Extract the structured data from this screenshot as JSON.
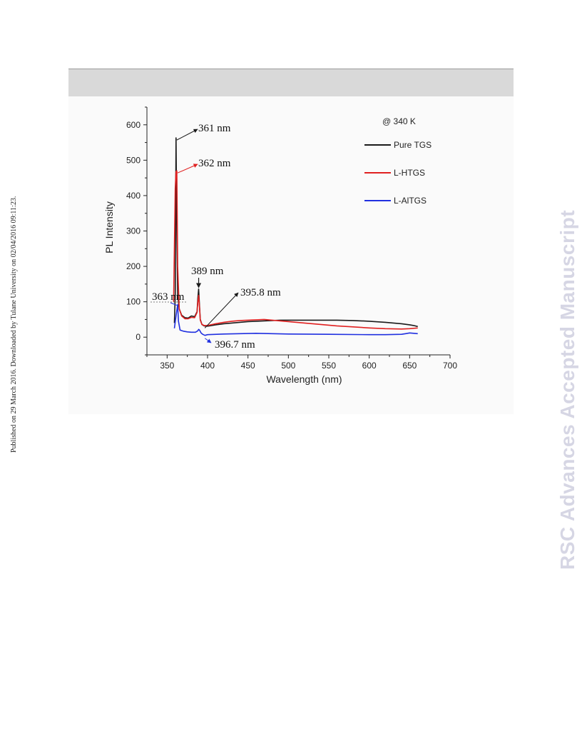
{
  "side_note": "Published on 29 March 2016. Downloaded by Tulane University on 02/04/2016 09:11:23.",
  "watermark": "RSC Advances Accepted Manuscript",
  "chart_data": {
    "type": "line",
    "title": "",
    "xlabel": "Wavelength (nm)",
    "ylabel": "PL Intensity",
    "xlim": [
      325,
      700
    ],
    "ylim": [
      -50,
      650
    ],
    "xticks": [
      350,
      400,
      450,
      500,
      550,
      600,
      650,
      700
    ],
    "yticks": [
      0,
      100,
      200,
      300,
      400,
      500,
      600
    ],
    "grid": false,
    "legend_title": "@ 340 K",
    "legend_position": "top-right",
    "series": [
      {
        "name": "Pure TGS",
        "color": "#1a1a1a",
        "x": [
          359,
          360,
          361,
          362,
          363,
          365,
          368,
          372,
          376,
          380,
          384,
          387,
          388,
          389,
          390,
          391,
          393,
          395.8,
          400,
          410,
          420,
          430,
          440,
          450,
          460,
          470,
          480,
          490,
          500,
          520,
          540,
          560,
          580,
          600,
          620,
          640,
          650,
          655,
          660
        ],
        "y": [
          40,
          120,
          563,
          300,
          120,
          80,
          62,
          55,
          54,
          60,
          58,
          72,
          110,
          136,
          90,
          50,
          36,
          32,
          31,
          35,
          38,
          40,
          42,
          44,
          45,
          46,
          47,
          48,
          48,
          48,
          48,
          48,
          47,
          45,
          42,
          38,
          35,
          33,
          30
        ]
      },
      {
        "name": "L-HTGS",
        "color": "#e02020",
        "x": [
          358,
          359,
          360,
          361,
          362,
          363,
          365,
          368,
          372,
          376,
          380,
          384,
          387,
          388,
          389,
          390,
          391,
          393,
          395.8,
          400,
          410,
          420,
          430,
          440,
          450,
          460,
          470,
          480,
          490,
          500,
          520,
          540,
          560,
          580,
          600,
          620,
          640,
          650,
          655,
          660
        ],
        "y": [
          100,
          250,
          420,
          468,
          470,
          200,
          80,
          60,
          52,
          52,
          56,
          55,
          70,
          100,
          118,
          85,
          48,
          36,
          33,
          33,
          38,
          42,
          45,
          47,
          48,
          49,
          50,
          48,
          46,
          44,
          40,
          36,
          32,
          29,
          26,
          24,
          23,
          24,
          25,
          26
        ]
      },
      {
        "name": "L-AlTGS",
        "color": "#2030e0",
        "x": [
          359,
          361,
          363,
          364,
          366,
          370,
          375,
          380,
          385,
          388,
          389,
          390,
          392,
          394,
          396.7,
          400,
          420,
          440,
          460,
          480,
          500,
          550,
          600,
          620,
          640,
          645,
          650,
          655,
          660
        ],
        "y": [
          25,
          60,
          92,
          45,
          20,
          17,
          15,
          14,
          14,
          18,
          22,
          20,
          12,
          8,
          5,
          7,
          9,
          10,
          11,
          10,
          9,
          8,
          7,
          7,
          8,
          10,
          12,
          11,
          10
        ]
      }
    ],
    "annotations": [
      {
        "text": "361 nm",
        "x": 361,
        "y": 563,
        "color": "#1a1a1a"
      },
      {
        "text": "362 nm",
        "x": 362,
        "y": 470,
        "color": "#e02020"
      },
      {
        "text": "389 nm",
        "x": 389,
        "y": 136,
        "color": "#1a1a1a"
      },
      {
        "text": "395.8 nm",
        "x": 395.8,
        "y": 32,
        "color": "#1a1a1a"
      },
      {
        "text": "363 nm",
        "x": 363,
        "y": 92,
        "color": "#2030e0"
      },
      {
        "text": "396.7 nm",
        "x": 396.7,
        "y": 5,
        "color": "#2030e0"
      }
    ]
  }
}
